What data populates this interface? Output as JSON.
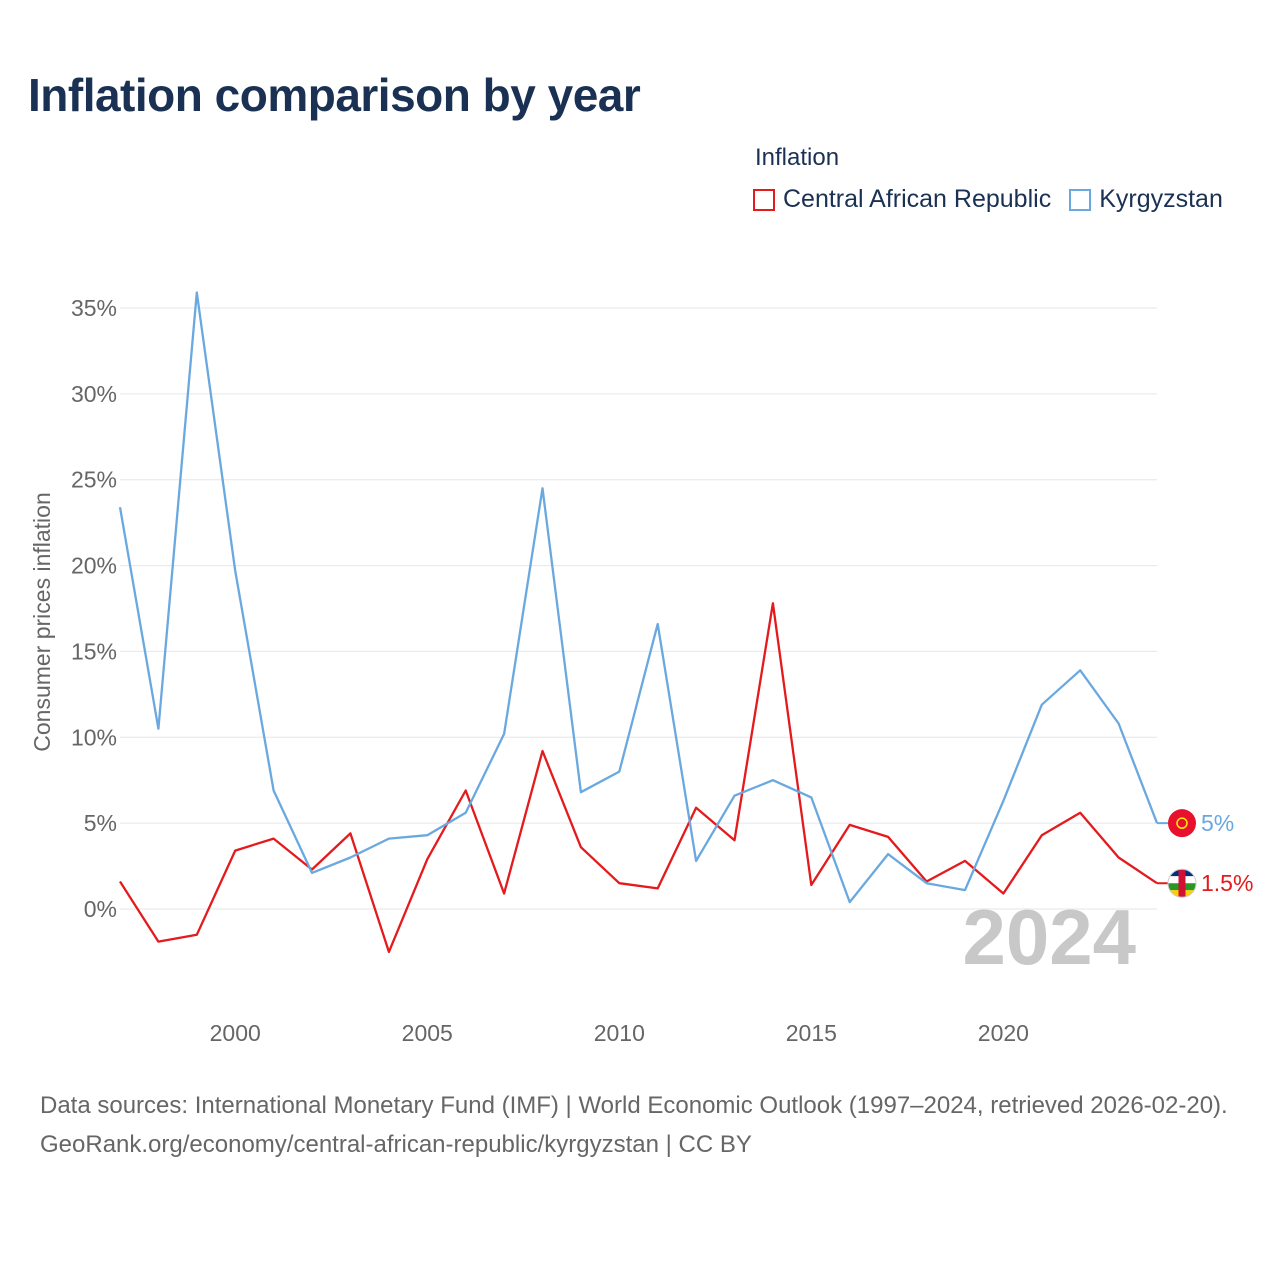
{
  "title": "Inflation comparison by year",
  "legend": {
    "title": "Inflation",
    "items": [
      {
        "label": "Central African Republic",
        "color": "#e41a1c"
      },
      {
        "label": "Kyrgyzstan",
        "color": "#6aa8e0"
      }
    ]
  },
  "watermark_year": "2024",
  "chart_data": {
    "type": "line",
    "title": "Inflation comparison by year",
    "xlabel": "",
    "ylabel": "Consumer prices inflation",
    "xlim": [
      1997,
      2024
    ],
    "ylim": [
      -5,
      37
    ],
    "x_ticks": [
      2000,
      2005,
      2010,
      2015,
      2020
    ],
    "y_ticks": [
      0,
      5,
      10,
      15,
      20,
      25,
      30,
      35
    ],
    "y_tick_labels": [
      "0%",
      "5%",
      "10%",
      "15%",
      "20%",
      "25%",
      "30%",
      "35%"
    ],
    "x": [
      1997,
      1998,
      1999,
      2000,
      2001,
      2002,
      2003,
      2004,
      2005,
      2006,
      2007,
      2008,
      2009,
      2010,
      2011,
      2012,
      2013,
      2014,
      2015,
      2016,
      2017,
      2018,
      2019,
      2020,
      2021,
      2022,
      2023,
      2024
    ],
    "series": [
      {
        "name": "Central African Republic",
        "color": "#e41a1c",
        "values": [
          1.6,
          -1.9,
          -1.5,
          3.4,
          4.1,
          2.3,
          4.4,
          -2.5,
          2.9,
          6.9,
          0.9,
          9.2,
          3.6,
          1.5,
          1.2,
          5.9,
          4.0,
          17.8,
          1.4,
          4.9,
          4.2,
          1.6,
          2.8,
          0.9,
          4.3,
          5.6,
          3.0,
          1.5
        ],
        "end_label": "1.5%"
      },
      {
        "name": "Kyrgyzstan",
        "color": "#6aa8e0",
        "values": [
          23.4,
          10.5,
          35.9,
          19.7,
          6.9,
          2.1,
          3.0,
          4.1,
          4.3,
          5.6,
          10.2,
          24.5,
          6.8,
          8.0,
          16.6,
          2.8,
          6.6,
          7.5,
          6.5,
          0.4,
          3.2,
          1.5,
          1.1,
          6.3,
          11.9,
          13.9,
          10.8,
          5.0
        ],
        "end_label": "5%"
      }
    ]
  },
  "footer": {
    "sources": "Data sources: International Monetary Fund (IMF) | World Economic Outlook (1997–2024, retrieved 2026-02-20).",
    "link": "GeoRank.org/economy/central-african-republic/kyrgyzstan | CC BY"
  }
}
